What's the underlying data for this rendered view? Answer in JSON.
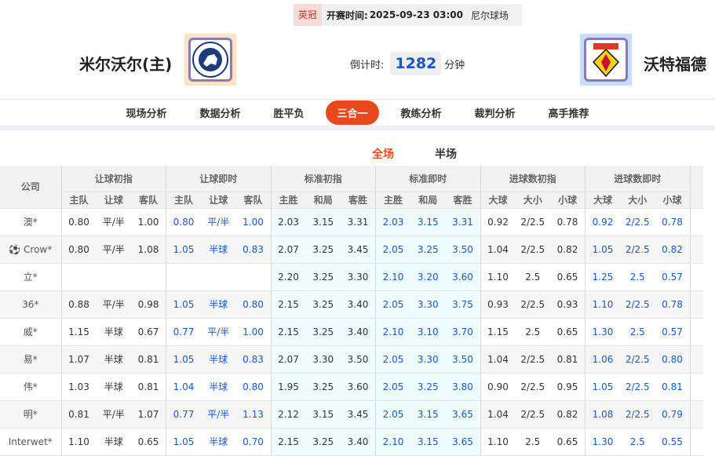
{
  "match": {
    "league": "英冠",
    "time_label": "开赛时间:",
    "time": "2025-09-23 03:00",
    "venue": "尼尔球场",
    "home": "米尔沃尔(主)",
    "away": "沃特福德",
    "countdown_label": "倒计时:",
    "countdown": "1282",
    "countdown_unit": "分钟"
  },
  "nav": [
    "现场分析",
    "数据分析",
    "胜平负",
    "三合一",
    "教练分析",
    "裁判分析",
    "高手推荐"
  ],
  "subtabs": [
    "全场",
    "半场"
  ],
  "table": {
    "company_header": "公司",
    "groups": [
      "让球初指",
      "让球即时",
      "标准初指",
      "标准即时",
      "进球数初指",
      "进球数即时"
    ],
    "subheaders": [
      "主队",
      "让球",
      "客队",
      "主队",
      "让球",
      "客队",
      "主胜",
      "和局",
      "客胜",
      "主胜",
      "和局",
      "客胜",
      "大球",
      "大小",
      "小球",
      "大球",
      "大小",
      "小球"
    ],
    "rows": [
      [
        "澳*",
        "0.80",
        "平/半",
        "1.00",
        "0.80",
        "平/半",
        "1.00",
        "2.03",
        "3.15",
        "3.31",
        "2.03",
        "3.15",
        "3.31",
        "0.92",
        "2/2.5",
        "0.78",
        "0.92",
        "2/2.5",
        "0.78"
      ],
      [
        "Crow*",
        "0.80",
        "平/半",
        "1.08",
        "1.05",
        "半球",
        "0.83",
        "2.07",
        "3.25",
        "3.45",
        "2.05",
        "3.25",
        "3.50",
        "1.04",
        "2/2.5",
        "0.82",
        "1.05",
        "2/2.5",
        "0.82"
      ],
      [
        "立*",
        "",
        "",
        "",
        "",
        "",
        "",
        "2.20",
        "3.25",
        "3.30",
        "2.10",
        "3.20",
        "3.60",
        "1.10",
        "2.5",
        "0.65",
        "1.25",
        "2.5",
        "0.57"
      ],
      [
        "36*",
        "0.88",
        "平/半",
        "0.98",
        "1.05",
        "半球",
        "0.80",
        "2.15",
        "3.25",
        "3.40",
        "2.05",
        "3.30",
        "3.75",
        "0.93",
        "2/2.5",
        "0.93",
        "1.10",
        "2/2.5",
        "0.78"
      ],
      [
        "威*",
        "1.15",
        "半球",
        "0.67",
        "0.77",
        "平/半",
        "1.00",
        "2.15",
        "3.25",
        "3.40",
        "2.10",
        "3.10",
        "3.70",
        "1.15",
        "2.5",
        "0.65",
        "1.30",
        "2.5",
        "0.57"
      ],
      [
        "易*",
        "1.07",
        "半球",
        "0.81",
        "1.05",
        "半球",
        "0.83",
        "2.07",
        "3.30",
        "3.50",
        "2.05",
        "3.30",
        "3.50",
        "1.04",
        "2/2.5",
        "0.81",
        "1.06",
        "2/2.5",
        "0.80"
      ],
      [
        "伟*",
        "1.03",
        "半球",
        "0.81",
        "1.04",
        "半球",
        "0.80",
        "1.95",
        "3.25",
        "3.60",
        "2.05",
        "3.25",
        "3.80",
        "0.90",
        "2/2.5",
        "0.95",
        "1.05",
        "2/2.5",
        "0.81"
      ],
      [
        "明*",
        "0.81",
        "平/半",
        "1.07",
        "0.77",
        "平/半",
        "1.13",
        "2.12",
        "3.15",
        "3.45",
        "2.05",
        "3.15",
        "3.65",
        "1.04",
        "2/2.5",
        "0.82",
        "1.08",
        "2/2.5",
        "0.79"
      ],
      [
        "Interwet*",
        "1.10",
        "半球",
        "0.65",
        "1.05",
        "半球",
        "0.70",
        "2.15",
        "3.25",
        "3.40",
        "2.10",
        "3.15",
        "3.65",
        "1.10",
        "2.5",
        "0.65",
        "1.30",
        "2.5",
        "0.55"
      ]
    ]
  },
  "colors": {
    "accent": "#e8481c",
    "live_value": "#1a56c4"
  }
}
